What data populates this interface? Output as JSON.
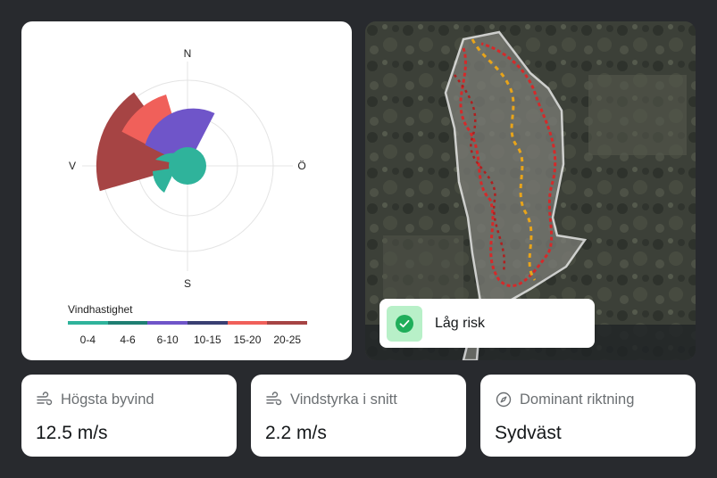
{
  "wind_rose": {
    "compass": {
      "north": "N",
      "east": "Ö",
      "south": "S",
      "west": "V"
    },
    "legend_title": "Vindhastighet",
    "bins": [
      {
        "label": "0-4",
        "color": "#2fb39b"
      },
      {
        "label": "4-6",
        "color": "#1f7f73"
      },
      {
        "label": "6-10",
        "color": "#6f55c9"
      },
      {
        "label": "10-15",
        "color": "#3a3f73"
      },
      {
        "label": "15-20",
        "color": "#f0605a"
      },
      {
        "label": "20-25",
        "color": "#a64444"
      }
    ]
  },
  "map": {
    "risk_badge": {
      "label": "Låg risk",
      "icon": "check-icon",
      "color": "#b8f0c8"
    }
  },
  "stats": {
    "gust": {
      "label": "Högsta byvind",
      "value": "12.5 m/s",
      "icon": "wind-icon"
    },
    "average": {
      "label": "Vindstyrka i snitt",
      "value": "2.2 m/s",
      "icon": "wind-icon"
    },
    "direction": {
      "label": "Dominant riktning",
      "value": "Sydväst",
      "icon": "compass-icon"
    }
  }
}
